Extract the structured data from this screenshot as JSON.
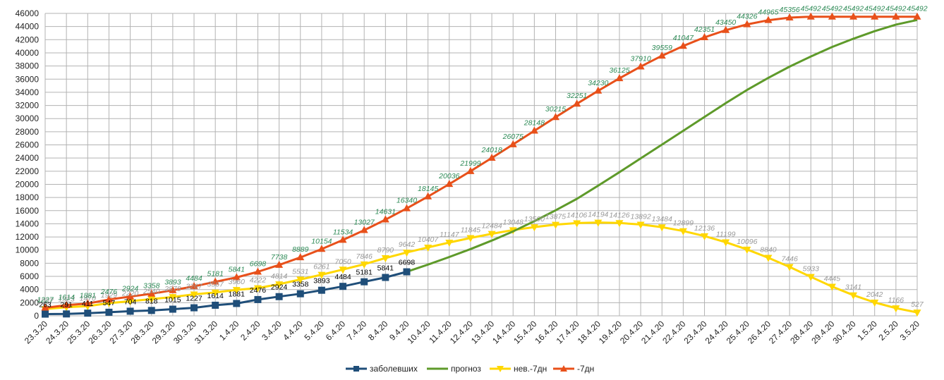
{
  "chart_data": {
    "type": "line",
    "title": "",
    "xlabel": "",
    "ylabel": "",
    "ylim": [
      0,
      46000
    ],
    "ystep": 2000,
    "grid": true,
    "legend_position": "bottom",
    "categories": [
      "23.3.20",
      "24.3.20",
      "25.3.20",
      "26.3.20",
      "27.3.20",
      "28.3.20",
      "29.3.20",
      "30.3.20",
      "31.3.20",
      "1.4.20",
      "2.4.20",
      "3.4.20",
      "4.4.20",
      "5.4.20",
      "6.4.20",
      "7.4.20",
      "8.4.20",
      "9.4.20",
      "10.4.20",
      "11.4.20",
      "12.4.20",
      "13.4.20",
      "14.4.20",
      "15.4.20",
      "16.4.20",
      "17.4.20",
      "18.4.20",
      "19.4.20",
      "20.4.20",
      "21.4.20",
      "22.4.20",
      "23.4.20",
      "24.4.20",
      "25.4.20",
      "26.4.20",
      "27.4.20",
      "28.4.20",
      "29.4.20",
      "30.4.20",
      "1.5.20",
      "2.5.20",
      "3.5.20"
    ],
    "series": [
      {
        "name": "заболевших",
        "color": "#1f4e79",
        "marker": "square",
        "label_style": "black",
        "values": [
          263,
          291,
          411,
          547,
          704,
          818,
          1015,
          1227,
          1614,
          1881,
          2476,
          2924,
          3358,
          3893,
          4484,
          5181,
          5841,
          6698,
          null,
          null,
          null,
          null,
          null,
          null,
          null,
          null,
          null,
          null,
          null,
          null,
          null,
          null,
          null,
          null,
          null,
          null,
          null,
          null,
          null,
          null,
          null,
          null
        ],
        "labels": [
          "263",
          "291",
          "411",
          "547",
          "704",
          "818",
          "1015",
          "1227",
          "1614",
          "1881",
          "2476",
          "2924",
          "3358",
          "3893",
          "4484",
          "5181",
          "5841",
          "6698"
        ]
      },
      {
        "name": "прогноз",
        "color": "#5e9a2a",
        "marker": "none",
        "label_style": "none",
        "values": [
          null,
          null,
          null,
          null,
          null,
          null,
          null,
          null,
          null,
          null,
          null,
          null,
          null,
          null,
          null,
          null,
          null,
          6698,
          7800,
          8950,
          10150,
          11450,
          12850,
          14400,
          16050,
          17800,
          19800,
          21850,
          23950,
          26050,
          28150,
          30250,
          32350,
          34350,
          36200,
          37900,
          39450,
          40900,
          42150,
          43300,
          44300,
          45000
        ],
        "labels": []
      },
      {
        "name": "нев.-7дн",
        "color": "#ffd700",
        "marker": "triangle-down",
        "label_style": "gray",
        "values": [
          1027,
          1323,
          1470,
          1929,
          2220,
          2540,
          2878,
          3267,
          3567,
          3960,
          4222,
          4814,
          5531,
          6261,
          7050,
          7846,
          8790,
          9642,
          10407,
          11147,
          11845,
          12484,
          13048,
          13500,
          13875,
          14106,
          14194,
          14126,
          13892,
          13484,
          12899,
          12136,
          11199,
          10096,
          8840,
          7446,
          5933,
          4445,
          3141,
          2042,
          1166,
          527
        ],
        "labels": [
          "1027",
          "1323",
          "1470",
          "1929",
          "2220",
          "2540",
          "2878",
          "3267",
          "3567",
          "3960",
          "4222",
          "4814",
          "5531",
          "6261",
          "7050",
          "7846",
          "8790",
          "9642",
          "10407",
          "11147",
          "11845",
          "12484",
          "13048",
          "13500",
          "13875",
          "14106",
          "14194",
          "14126",
          "13892",
          "13484",
          "12899",
          "12136",
          "11199",
          "10096",
          "8840",
          "7446",
          "5933",
          "4445",
          "3141",
          "2042",
          "1166",
          "527"
        ]
      },
      {
        "name": "-7дн",
        "color": "#e8501a",
        "marker": "triangle-up",
        "label_style": "green",
        "values": [
          1227,
          1614,
          1881,
          2476,
          2924,
          3358,
          3893,
          4484,
          5181,
          5841,
          6698,
          7738,
          8889,
          10154,
          11534,
          13027,
          14631,
          16340,
          18145,
          20036,
          21999,
          24018,
          26075,
          28148,
          30215,
          32251,
          34230,
          36125,
          37910,
          39559,
          41047,
          42351,
          43450,
          44326,
          44965,
          45356,
          45492,
          45492,
          45492,
          45492,
          45492,
          45492
        ],
        "labels": [
          "1227",
          "1614",
          "1881",
          "2476",
          "2924",
          "3358",
          "3893",
          "4484",
          "5181",
          "5841",
          "6698",
          "7738",
          "8889",
          "10154",
          "11534",
          "13027",
          "14631",
          "16340",
          "18145",
          "20036",
          "21999",
          "24018",
          "26075",
          "28148",
          "30215",
          "32251",
          "34230",
          "36125",
          "37910",
          "39559",
          "41047",
          "42351",
          "43450",
          "44326",
          "44965",
          "45356",
          "45492",
          "45492",
          "45492",
          "45492",
          "45492",
          "45492"
        ]
      }
    ]
  }
}
